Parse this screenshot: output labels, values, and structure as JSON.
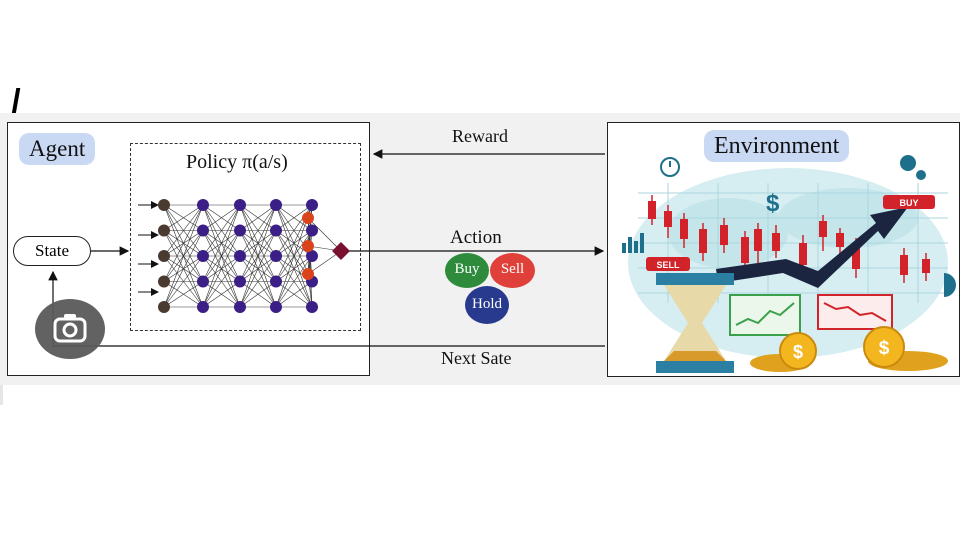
{
  "agent": {
    "title": "Agent",
    "policy_label": "Policy π(a/s)",
    "state_label": "State"
  },
  "environment": {
    "title": "Environment",
    "tags": {
      "buy": "BUY",
      "sell": "SELL"
    },
    "coin_symbol": "$"
  },
  "flows": {
    "reward_label": "Reward",
    "action_label": "Action",
    "next_state_label": "Next Sate"
  },
  "actions": [
    {
      "label": "Buy",
      "color": "#2e8b3c"
    },
    {
      "label": "Sell",
      "color": "#e0403a"
    },
    {
      "label": "Hold",
      "color": "#283a8e"
    }
  ],
  "colors": {
    "input_neuron": "#4a3a30",
    "hidden_neuron": "#3b1f87",
    "output_neuron": "#d9441c",
    "decision_node": "#7a1030",
    "candle_red": "#d2232a",
    "trend_arrow": "#1b2540",
    "title_pill": "#c9d9f3"
  },
  "network": {
    "layers": [
      5,
      5,
      5,
      5,
      5,
      3,
      1
    ]
  }
}
